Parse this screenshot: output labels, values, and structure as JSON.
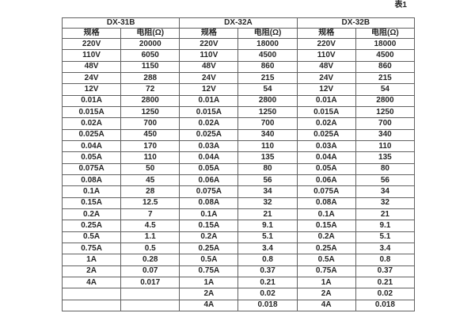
{
  "page": {
    "caption": "表1"
  },
  "colors": {
    "background": "#ffffff",
    "border": "#616161",
    "outer_border": "#3f3f3f",
    "text": "#262626"
  },
  "table": {
    "groups": [
      "DX-31B",
      "DX-32A",
      "DX-32B"
    ],
    "col_headers": [
      "规格",
      "电阻(Ω)",
      "规格",
      "电阻(Ω)",
      "规格",
      "电阻(Ω)"
    ],
    "rows": [
      [
        "220V",
        "20000",
        "220V",
        "18000",
        "220V",
        "18000"
      ],
      [
        "110V",
        "6050",
        "110V",
        "4500",
        "110V",
        "4500"
      ],
      [
        "48V",
        "1150",
        "48V",
        "860",
        "48V",
        "860"
      ],
      [
        "24V",
        "288",
        "24V",
        "215",
        "24V",
        "215"
      ],
      [
        "12V",
        "72",
        "12V",
        "54",
        "12V",
        "54"
      ],
      [
        "0.01A",
        "2800",
        "0.01A",
        "2800",
        "0.01A",
        "2800"
      ],
      [
        "0.015A",
        "1250",
        "0.015A",
        "1250",
        "0.015A",
        "1250"
      ],
      [
        "0.02A",
        "700",
        "0.02A",
        "700",
        "0.02A",
        "700"
      ],
      [
        "0.025A",
        "450",
        "0.025A",
        "340",
        "0.025A",
        "340"
      ],
      [
        "0.04A",
        "170",
        "0.03A",
        "110",
        "0.03A",
        "110"
      ],
      [
        "0.05A",
        "110",
        "0.04A",
        "135",
        "0.04A",
        "135"
      ],
      [
        "0.075A",
        "50",
        "0.05A",
        "80",
        "0.05A",
        "80"
      ],
      [
        "0.08A",
        "45",
        "0.06A",
        "56",
        "0.06A",
        "56"
      ],
      [
        "0.1A",
        "28",
        "0.075A",
        "34",
        "0.075A",
        "34"
      ],
      [
        "0.15A",
        "12.5",
        "0.08A",
        "32",
        "0.08A",
        "32"
      ],
      [
        "0.2A",
        "7",
        "0.1A",
        "21",
        "0.1A",
        "21"
      ],
      [
        "0.25A",
        "4.5",
        "0.15A",
        "9.1",
        "0.15A",
        "9.1"
      ],
      [
        "0.5A",
        "1.1",
        "0.2A",
        "5.1",
        "0.2A",
        "5.1"
      ],
      [
        "0.75A",
        "0.5",
        "0.25A",
        "3.4",
        "0.25A",
        "3.4"
      ],
      [
        "1A",
        "0.28",
        "0.5A",
        "0.8",
        "0.5A",
        "0.8"
      ],
      [
        "2A",
        "0.07",
        "0.75A",
        "0.37",
        "0.75A",
        "0.37"
      ],
      [
        "4A",
        "0.017",
        "1A",
        "0.21",
        "1A",
        "0.21"
      ],
      [
        "",
        "",
        "2A",
        "0.02",
        "2A",
        "0.02"
      ],
      [
        "",
        "",
        "4A",
        "0.018",
        "4A",
        "0.018"
      ]
    ]
  }
}
